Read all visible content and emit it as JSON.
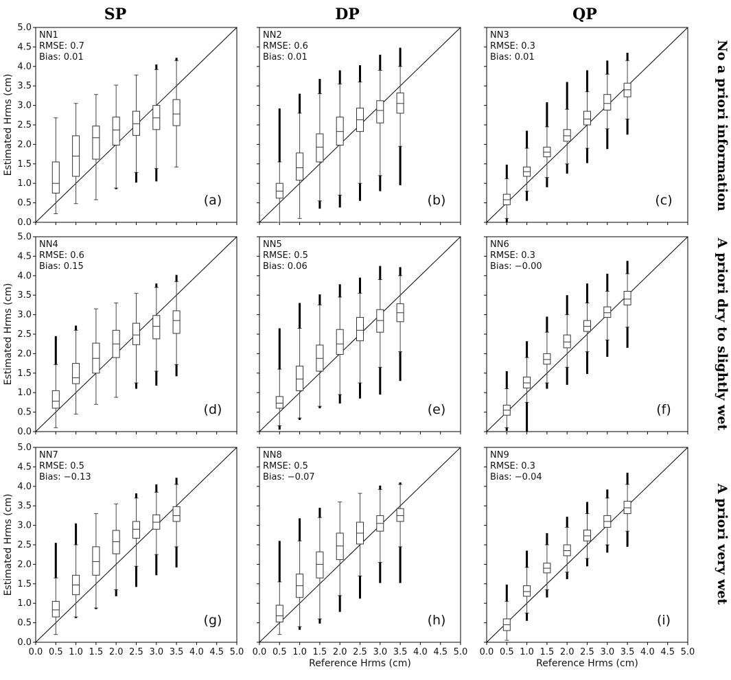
{
  "column_headers": [
    "SP",
    "DP",
    "QP"
  ],
  "row_headers": [
    "No a priori information",
    "A priori dry to slightly wet",
    "A priori very wet"
  ],
  "chart_data": [
    {
      "type": "box",
      "panel": "(a)",
      "model": "NN1",
      "rmse": "RMSE: 0.7",
      "bias": "Bias: 0.01",
      "xlabel": "",
      "ylabel": "Estimated Hrms (cm)",
      "xlim": [
        0,
        5
      ],
      "ylim": [
        0,
        5
      ],
      "x": [
        0.5,
        1.0,
        1.5,
        2.0,
        2.5,
        3.0,
        3.5
      ],
      "boxes": [
        {
          "q1": 0.75,
          "median": 1.0,
          "q3": 1.55,
          "whisker_low": 0.22,
          "whisker_high": 2.68,
          "out_low": null,
          "out_high": null
        },
        {
          "q1": 1.18,
          "median": 1.7,
          "q3": 2.22,
          "whisker_low": 0.48,
          "whisker_high": 3.05,
          "out_low": null,
          "out_high": null
        },
        {
          "q1": 1.62,
          "median": 2.17,
          "q3": 2.47,
          "whisker_low": 0.58,
          "whisker_high": 3.28,
          "out_low": null,
          "out_high": null
        },
        {
          "q1": 1.98,
          "median": 2.37,
          "q3": 2.7,
          "whisker_low": 0.88,
          "whisker_high": 3.52,
          "out_low": 0.85,
          "out_high": null
        },
        {
          "q1": 2.23,
          "median": 2.53,
          "q3": 2.85,
          "whisker_low": 1.28,
          "whisker_high": 3.78,
          "out_low": 1.02,
          "out_high": null
        },
        {
          "q1": 2.38,
          "median": 2.68,
          "q3": 3.0,
          "whisker_low": 1.38,
          "whisker_high": 3.92,
          "out_low": 1.05,
          "out_high": 4.05
        },
        {
          "q1": 2.48,
          "median": 2.78,
          "q3": 3.15,
          "whisker_low": 1.42,
          "whisker_high": 4.15,
          "out_low": null,
          "out_high": 4.22
        }
      ]
    },
    {
      "type": "box",
      "panel": "(b)",
      "model": "NN2",
      "rmse": "RMSE: 0.6",
      "bias": "Bias: 0.01",
      "xlabel": "",
      "ylabel": "",
      "xlim": [
        0,
        5
      ],
      "ylim": [
        0,
        5
      ],
      "x": [
        0.5,
        1.0,
        1.5,
        2.0,
        2.5,
        3.0,
        3.5
      ],
      "boxes": [
        {
          "q1": 0.62,
          "median": 0.8,
          "q3": 1.0,
          "whisker_low": 0.0,
          "whisker_high": 1.55,
          "out_low": null,
          "out_high": 2.92
        },
        {
          "q1": 1.08,
          "median": 1.4,
          "q3": 1.78,
          "whisker_low": 0.1,
          "whisker_high": 2.8,
          "out_low": null,
          "out_high": 3.3
        },
        {
          "q1": 1.55,
          "median": 1.93,
          "q3": 2.27,
          "whisker_low": 0.55,
          "whisker_high": 3.3,
          "out_low": 0.35,
          "out_high": 3.68
        },
        {
          "q1": 1.98,
          "median": 2.33,
          "q3": 2.7,
          "whisker_low": 0.7,
          "whisker_high": 3.55,
          "out_low": 0.38,
          "out_high": 3.9
        },
        {
          "q1": 2.33,
          "median": 2.63,
          "q3": 2.93,
          "whisker_low": 1.0,
          "whisker_high": 3.6,
          "out_low": 0.55,
          "out_high": 4.03
        },
        {
          "q1": 2.55,
          "median": 2.87,
          "q3": 3.12,
          "whisker_low": 1.2,
          "whisker_high": 3.9,
          "out_low": 0.8,
          "out_high": 4.3
        },
        {
          "q1": 2.8,
          "median": 3.05,
          "q3": 3.32,
          "whisker_low": 1.95,
          "whisker_high": 4.0,
          "out_low": 0.95,
          "out_high": 4.48
        }
      ]
    },
    {
      "type": "box",
      "panel": "(c)",
      "model": "NN3",
      "rmse": "RMSE: 0.3",
      "bias": "Bias: 0.01",
      "xlabel": "",
      "ylabel": "",
      "xlim": [
        0,
        5
      ],
      "ylim": [
        0,
        5
      ],
      "x": [
        0.5,
        1.0,
        1.5,
        2.0,
        2.5,
        3.0,
        3.5
      ],
      "boxes": [
        {
          "q1": 0.45,
          "median": 0.58,
          "q3": 0.72,
          "whisker_low": 0.1,
          "whisker_high": 1.12,
          "out_low": 0.0,
          "out_high": 1.48
        },
        {
          "q1": 1.18,
          "median": 1.3,
          "q3": 1.42,
          "whisker_low": 0.8,
          "whisker_high": 1.9,
          "out_low": 0.55,
          "out_high": 2.35
        },
        {
          "q1": 1.68,
          "median": 1.8,
          "q3": 1.93,
          "whisker_low": 1.15,
          "whisker_high": 2.45,
          "out_low": 0.9,
          "out_high": 3.08
        },
        {
          "q1": 2.08,
          "median": 2.22,
          "q3": 2.38,
          "whisker_low": 1.5,
          "whisker_high": 2.9,
          "out_low": 1.25,
          "out_high": 3.6
        },
        {
          "q1": 2.5,
          "median": 2.65,
          "q3": 2.85,
          "whisker_low": 1.9,
          "whisker_high": 3.35,
          "out_low": 1.52,
          "out_high": 3.9
        },
        {
          "q1": 2.88,
          "median": 3.05,
          "q3": 3.28,
          "whisker_low": 2.4,
          "whisker_high": 3.8,
          "out_low": 1.88,
          "out_high": 4.15
        },
        {
          "q1": 3.22,
          "median": 3.4,
          "q3": 3.57,
          "whisker_low": 2.65,
          "whisker_high": 4.15,
          "out_low": 2.25,
          "out_high": 4.35
        }
      ]
    },
    {
      "type": "box",
      "panel": "(d)",
      "model": "NN4",
      "rmse": "RMSE: 0.6",
      "bias": "Bias: 0.15",
      "xlabel": "",
      "ylabel": "Estimated Hrms (cm)",
      "xlim": [
        0,
        5
      ],
      "ylim": [
        0,
        5
      ],
      "x": [
        0.5,
        1.0,
        1.5,
        2.0,
        2.5,
        3.0,
        3.5
      ],
      "boxes": [
        {
          "q1": 0.6,
          "median": 0.78,
          "q3": 1.05,
          "whisker_low": 0.1,
          "whisker_high": 1.72,
          "out_low": null,
          "out_high": 2.45
        },
        {
          "q1": 1.23,
          "median": 1.38,
          "q3": 1.75,
          "whisker_low": 0.45,
          "whisker_high": 2.6,
          "out_low": null,
          "out_high": 2.72
        },
        {
          "q1": 1.5,
          "median": 1.88,
          "q3": 2.27,
          "whisker_low": 0.7,
          "whisker_high": 3.15,
          "out_low": null,
          "out_high": null
        },
        {
          "q1": 1.9,
          "median": 2.25,
          "q3": 2.6,
          "whisker_low": 0.88,
          "whisker_high": 3.3,
          "out_low": null,
          "out_high": null
        },
        {
          "q1": 2.23,
          "median": 2.48,
          "q3": 2.78,
          "whisker_low": 1.25,
          "whisker_high": 3.55,
          "out_low": 1.1,
          "out_high": null
        },
        {
          "q1": 2.38,
          "median": 2.7,
          "q3": 2.98,
          "whisker_low": 1.55,
          "whisker_high": 3.7,
          "out_low": 1.18,
          "out_high": 3.8
        },
        {
          "q1": 2.52,
          "median": 2.85,
          "q3": 3.1,
          "whisker_low": 1.72,
          "whisker_high": 3.85,
          "out_low": 1.42,
          "out_high": 4.02
        }
      ]
    },
    {
      "type": "box",
      "panel": "(e)",
      "model": "NN5",
      "rmse": "RMSE: 0.5",
      "bias": "Bias: 0.06",
      "xlabel": "",
      "ylabel": "",
      "xlim": [
        0,
        5
      ],
      "ylim": [
        0,
        5
      ],
      "x": [
        0.5,
        1.0,
        1.5,
        2.0,
        2.5,
        3.0,
        3.5
      ],
      "boxes": [
        {
          "q1": 0.6,
          "median": 0.73,
          "q3": 0.9,
          "whisker_low": 0.15,
          "whisker_high": 1.6,
          "out_low": 0.05,
          "out_high": 2.65
        },
        {
          "q1": 1.05,
          "median": 1.35,
          "q3": 1.68,
          "whisker_low": 0.35,
          "whisker_high": 2.65,
          "out_low": 0.3,
          "out_high": 3.3
        },
        {
          "q1": 1.55,
          "median": 1.88,
          "q3": 2.22,
          "whisker_low": 0.65,
          "whisker_high": 3.25,
          "out_low": 0.6,
          "out_high": 3.52
        },
        {
          "q1": 1.98,
          "median": 2.25,
          "q3": 2.62,
          "whisker_low": 0.95,
          "whisker_high": 3.45,
          "out_low": 0.72,
          "out_high": 3.78
        },
        {
          "q1": 2.33,
          "median": 2.6,
          "q3": 2.93,
          "whisker_low": 1.25,
          "whisker_high": 3.55,
          "out_low": 0.85,
          "out_high": 3.95
        },
        {
          "q1": 2.55,
          "median": 2.85,
          "q3": 3.13,
          "whisker_low": 1.65,
          "whisker_high": 3.9,
          "out_low": 0.95,
          "out_high": 4.25
        },
        {
          "q1": 2.82,
          "median": 3.05,
          "q3": 3.28,
          "whisker_low": 2.05,
          "whisker_high": 4.0,
          "out_low": 1.3,
          "out_high": 4.22
        }
      ]
    },
    {
      "type": "box",
      "panel": "(f)",
      "model": "NN6",
      "rmse": "RMSE: 0.3",
      "bias": "Bias: −0.00",
      "xlabel": "",
      "ylabel": "",
      "xlim": [
        0,
        5
      ],
      "ylim": [
        0,
        5
      ],
      "x": [
        0.5,
        1.0,
        1.5,
        2.0,
        2.5,
        3.0,
        3.5
      ],
      "boxes": [
        {
          "q1": 0.42,
          "median": 0.55,
          "q3": 0.68,
          "whisker_low": 0.1,
          "whisker_high": 1.1,
          "out_low": 0.02,
          "out_high": 1.55
        },
        {
          "q1": 1.12,
          "median": 1.25,
          "q3": 1.4,
          "whisker_low": 0.75,
          "whisker_high": 1.9,
          "out_low": 0.0,
          "out_high": 2.32
        },
        {
          "q1": 1.73,
          "median": 1.85,
          "q3": 2.0,
          "whisker_low": 1.25,
          "whisker_high": 2.55,
          "out_low": 1.1,
          "out_high": 2.95
        },
        {
          "q1": 2.15,
          "median": 2.3,
          "q3": 2.48,
          "whisker_low": 1.65,
          "whisker_high": 3.0,
          "out_low": 1.2,
          "out_high": 3.5
        },
        {
          "q1": 2.57,
          "median": 2.7,
          "q3": 2.85,
          "whisker_low": 2.05,
          "whisker_high": 3.3,
          "out_low": 1.48,
          "out_high": 3.8
        },
        {
          "q1": 2.93,
          "median": 3.05,
          "q3": 3.2,
          "whisker_low": 2.35,
          "whisker_high": 3.6,
          "out_low": 1.92,
          "out_high": 4.05
        },
        {
          "q1": 3.25,
          "median": 3.4,
          "q3": 3.6,
          "whisker_low": 2.68,
          "whisker_high": 4.05,
          "out_low": 2.15,
          "out_high": 4.38
        }
      ]
    },
    {
      "type": "box",
      "panel": "(g)",
      "model": "NN7",
      "rmse": "RMSE: 0.5",
      "bias": "Bias: −0.13",
      "xlabel": "",
      "ylabel": "Estimated Hrms (cm)",
      "xlim": [
        0,
        5
      ],
      "ylim": [
        0,
        5
      ],
      "x": [
        0.5,
        1.0,
        1.5,
        2.0,
        2.5,
        3.0,
        3.5
      ],
      "boxes": [
        {
          "q1": 0.65,
          "median": 0.83,
          "q3": 1.05,
          "whisker_low": 0.2,
          "whisker_high": 1.65,
          "out_low": null,
          "out_high": 2.55
        },
        {
          "q1": 1.22,
          "median": 1.47,
          "q3": 1.72,
          "whisker_low": 0.65,
          "whisker_high": 2.5,
          "out_low": 0.62,
          "out_high": 3.05
        },
        {
          "q1": 1.72,
          "median": 2.07,
          "q3": 2.45,
          "whisker_low": 0.88,
          "whisker_high": 3.3,
          "out_low": 0.85,
          "out_high": null
        },
        {
          "q1": 2.27,
          "median": 2.58,
          "q3": 2.87,
          "whisker_low": 1.35,
          "whisker_high": 3.55,
          "out_low": 1.18,
          "out_high": null
        },
        {
          "q1": 2.67,
          "median": 2.9,
          "q3": 3.1,
          "whisker_low": 1.95,
          "whisker_high": 3.7,
          "out_low": 1.42,
          "out_high": 3.82
        },
        {
          "q1": 2.9,
          "median": 3.08,
          "q3": 3.27,
          "whisker_low": 2.25,
          "whisker_high": 3.85,
          "out_low": 1.72,
          "out_high": 4.05
        },
        {
          "q1": 3.1,
          "median": 3.25,
          "q3": 3.48,
          "whisker_low": 2.45,
          "whisker_high": 4.05,
          "out_low": 1.92,
          "out_high": 4.22
        }
      ]
    },
    {
      "type": "box",
      "panel": "(h)",
      "model": "NN8",
      "rmse": "RMSE: 0.5",
      "bias": "Bias: −0.07",
      "xlabel": "Reference Hrms (cm)",
      "ylabel": "",
      "xlim": [
        0,
        5
      ],
      "ylim": [
        0,
        5
      ],
      "x": [
        0.5,
        1.0,
        1.5,
        2.0,
        2.5,
        3.0,
        3.5
      ],
      "boxes": [
        {
          "q1": 0.52,
          "median": 0.68,
          "q3": 0.95,
          "whisker_low": 0.2,
          "whisker_high": 1.55,
          "out_low": null,
          "out_high": 2.6
        },
        {
          "q1": 1.15,
          "median": 1.45,
          "q3": 1.75,
          "whisker_low": 0.4,
          "whisker_high": 2.6,
          "out_low": 0.32,
          "out_high": 3.18
        },
        {
          "q1": 1.65,
          "median": 2.0,
          "q3": 2.32,
          "whisker_low": 0.6,
          "whisker_high": 3.2,
          "out_low": 0.48,
          "out_high": 3.45
        },
        {
          "q1": 2.12,
          "median": 2.47,
          "q3": 2.8,
          "whisker_low": 1.2,
          "whisker_high": 3.6,
          "out_low": 0.78,
          "out_high": null
        },
        {
          "q1": 2.52,
          "median": 2.8,
          "q3": 3.08,
          "whisker_low": 1.7,
          "whisker_high": 3.82,
          "out_low": 1.12,
          "out_high": null
        },
        {
          "q1": 2.85,
          "median": 3.05,
          "q3": 3.25,
          "whisker_low": 2.05,
          "whisker_high": 3.92,
          "out_low": 1.52,
          "out_high": 4.02
        },
        {
          "q1": 3.1,
          "median": 3.25,
          "q3": 3.43,
          "whisker_low": 2.45,
          "whisker_high": 4.05,
          "out_low": 1.52,
          "out_high": 4.1
        }
      ]
    },
    {
      "type": "box",
      "panel": "(i)",
      "model": "NN9",
      "rmse": "RMSE: 0.3",
      "bias": "Bias: −0.04",
      "xlabel": "Reference Hrms (cm)",
      "ylabel": "",
      "xlim": [
        0,
        5
      ],
      "ylim": [
        0,
        5
      ],
      "x": [
        0.5,
        1.0,
        1.5,
        2.0,
        2.5,
        3.0,
        3.5
      ],
      "boxes": [
        {
          "q1": 0.3,
          "median": 0.45,
          "q3": 0.6,
          "whisker_low": 0.05,
          "whisker_high": 1.05,
          "out_low": null,
          "out_high": 1.48
        },
        {
          "q1": 1.18,
          "median": 1.3,
          "q3": 1.45,
          "whisker_low": 0.75,
          "whisker_high": 1.92,
          "out_low": 0.55,
          "out_high": 2.35
        },
        {
          "q1": 1.78,
          "median": 1.9,
          "q3": 2.03,
          "whisker_low": 1.35,
          "whisker_high": 2.5,
          "out_low": 1.15,
          "out_high": 2.8
        },
        {
          "q1": 2.22,
          "median": 2.35,
          "q3": 2.5,
          "whisker_low": 1.8,
          "whisker_high": 2.95,
          "out_low": 1.62,
          "out_high": 3.22
        },
        {
          "q1": 2.6,
          "median": 2.73,
          "q3": 2.88,
          "whisker_low": 2.15,
          "whisker_high": 3.3,
          "out_low": 1.95,
          "out_high": 3.6
        },
        {
          "q1": 2.95,
          "median": 3.1,
          "q3": 3.25,
          "whisker_low": 2.5,
          "whisker_high": 3.7,
          "out_low": 2.3,
          "out_high": 3.92
        },
        {
          "q1": 3.3,
          "median": 3.45,
          "q3": 3.62,
          "whisker_low": 2.85,
          "whisker_high": 4.05,
          "out_low": 2.45,
          "out_high": 4.35
        }
      ]
    }
  ]
}
